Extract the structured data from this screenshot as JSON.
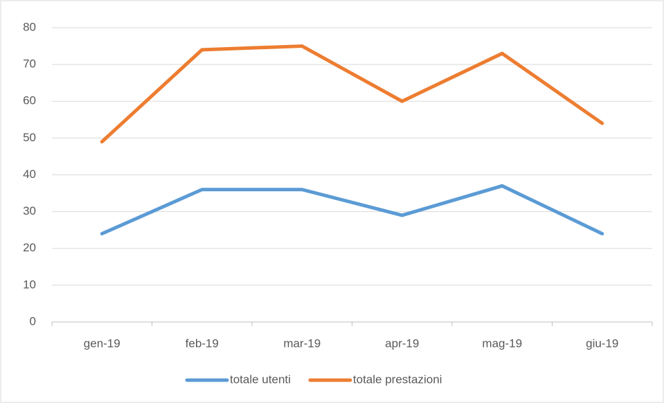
{
  "chart_data": {
    "type": "line",
    "categories": [
      "gen-19",
      "feb-19",
      "mar-19",
      "apr-19",
      "mag-19",
      "giu-19"
    ],
    "series": [
      {
        "name": "totale utenti",
        "color": "#5b9bd5",
        "values": [
          24,
          36,
          36,
          29,
          37,
          24
        ]
      },
      {
        "name": "totale prestazioni",
        "color": "#ed7d31",
        "values": [
          49,
          74,
          75,
          60,
          73,
          54
        ]
      }
    ],
    "ylim": [
      0,
      80
    ],
    "yticks": [
      0,
      10,
      20,
      30,
      40,
      50,
      60,
      70,
      80
    ],
    "grid": true,
    "legend": "bottom"
  }
}
